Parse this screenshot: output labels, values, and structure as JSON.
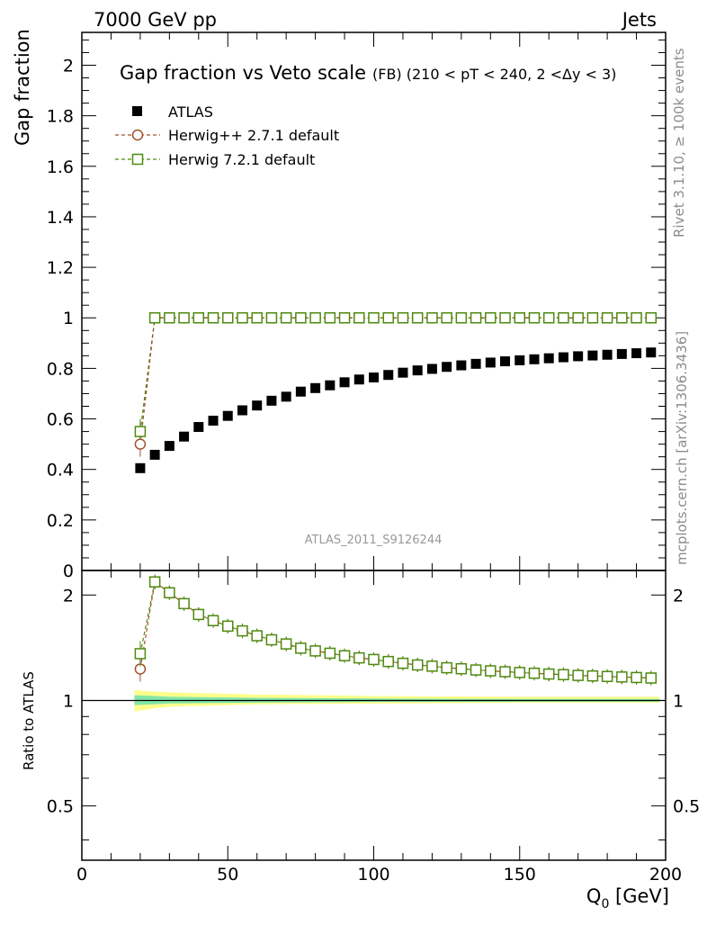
{
  "header": {
    "left": "7000 GeV pp",
    "right": "Jets"
  },
  "side_labels": {
    "rivet": "Rivet 3.1.10, ≥ 100k events",
    "mcplots": "mcplots.cern.ch [arXiv:1306.3436]"
  },
  "chart_data": [
    {
      "type": "scatter",
      "panel": "main",
      "title": "Gap fraction vs Veto scale",
      "subtitle": "(FB) (210 < pT < 240, 2 <Δy < 3)",
      "ylabel": "Gap fraction",
      "xlabel": "",
      "xlim": [
        0,
        200
      ],
      "ylim": [
        0,
        2.13
      ],
      "yticks": [
        0,
        0.2,
        0.4,
        0.6,
        0.8,
        1,
        1.2,
        1.4,
        1.6,
        1.8,
        2
      ],
      "ytick_labels": [
        "0",
        "0.2",
        "0.4",
        "0.6",
        "0.8",
        "1",
        "1.2",
        "1.4",
        "1.6",
        "1.8",
        "2"
      ],
      "watermark": "ATLAS_2011_S9126244",
      "legend": {
        "position": "top-left"
      },
      "x": [
        20,
        25,
        30,
        35,
        40,
        45,
        50,
        55,
        60,
        65,
        70,
        75,
        80,
        85,
        90,
        95,
        100,
        105,
        110,
        115,
        120,
        125,
        130,
        135,
        140,
        145,
        150,
        155,
        160,
        165,
        170,
        175,
        180,
        185,
        190,
        195
      ],
      "series": [
        {
          "name": "ATLAS",
          "color": "#000000",
          "marker": "square-filled",
          "x": [
            20,
            25,
            30,
            35,
            40,
            45,
            50,
            55,
            60,
            65,
            70,
            75,
            80,
            85,
            90,
            95,
            100,
            105,
            110,
            115,
            120,
            125,
            130,
            135,
            140,
            145,
            150,
            155,
            160,
            165,
            170,
            175,
            180,
            185,
            190,
            195
          ],
          "values": [
            0.405,
            0.458,
            0.493,
            0.53,
            0.568,
            0.593,
            0.612,
            0.634,
            0.653,
            0.672,
            0.688,
            0.708,
            0.722,
            0.733,
            0.745,
            0.756,
            0.764,
            0.774,
            0.783,
            0.792,
            0.798,
            0.806,
            0.812,
            0.818,
            0.823,
            0.828,
            0.832,
            0.836,
            0.84,
            0.844,
            0.848,
            0.851,
            0.854,
            0.857,
            0.86,
            0.863
          ]
        },
        {
          "name": "Herwig++ 2.7.1 default",
          "color": "#a0522d",
          "marker": "circle-open",
          "x": [
            20,
            25,
            30,
            35,
            40,
            45,
            50,
            55,
            60,
            65,
            70,
            75,
            80,
            85,
            90,
            95,
            100,
            105,
            110,
            115,
            120,
            125,
            130,
            135,
            140,
            145,
            150,
            155,
            160,
            165,
            170,
            175,
            180,
            185,
            190,
            195
          ],
          "values": [
            0.5,
            1,
            1,
            1,
            1,
            1,
            1,
            1,
            1,
            1,
            1,
            1,
            1,
            1,
            1,
            1,
            1,
            1,
            1,
            1,
            1,
            1,
            1,
            1,
            1,
            1,
            1,
            1,
            1,
            1,
            1,
            1,
            1,
            1,
            1,
            1
          ]
        },
        {
          "name": "Herwig 7.2.1 default",
          "color": "#4e8a0e",
          "marker": "square-open",
          "x": [
            20,
            25,
            30,
            35,
            40,
            45,
            50,
            55,
            60,
            65,
            70,
            75,
            80,
            85,
            90,
            95,
            100,
            105,
            110,
            115,
            120,
            125,
            130,
            135,
            140,
            145,
            150,
            155,
            160,
            165,
            170,
            175,
            180,
            185,
            190,
            195
          ],
          "values": [
            0.55,
            1,
            1,
            1,
            1,
            1,
            1,
            1,
            1,
            1,
            1,
            1,
            1,
            1,
            1,
            1,
            1,
            1,
            1,
            1,
            1,
            1,
            1,
            1,
            1,
            1,
            1,
            1,
            1,
            1,
            1,
            1,
            1,
            1,
            1,
            1
          ]
        }
      ]
    },
    {
      "type": "scatter",
      "panel": "ratio",
      "ylabel": "Ratio to ATLAS",
      "xlabel": "Q_0 [GeV]",
      "xlabel_main": "Q",
      "xlabel_sub": "0",
      "xlabel_unit": " [GeV]",
      "xlim": [
        0,
        200
      ],
      "ylim": [
        0.35,
        2.35
      ],
      "yscale": "log",
      "xticks": [
        0,
        50,
        100,
        150,
        200
      ],
      "xtick_labels": [
        "0",
        "50",
        "100",
        "150",
        "200"
      ],
      "yticks": [
        0.5,
        1,
        2
      ],
      "ytick_labels": [
        "0.5",
        "1",
        "2"
      ],
      "band_x": [
        18,
        25,
        30,
        40,
        60,
        100,
        150,
        198
      ],
      "band_yellow_lo": [
        0.93,
        0.95,
        0.96,
        0.965,
        0.975,
        0.98,
        0.985,
        0.985
      ],
      "band_yellow_hi": [
        1.07,
        1.06,
        1.055,
        1.05,
        1.04,
        1.03,
        1.025,
        1.025
      ],
      "band_green_lo": [
        0.97,
        0.975,
        0.98,
        0.982,
        0.986,
        0.99,
        0.992,
        0.992
      ],
      "band_green_hi": [
        1.035,
        1.03,
        1.025,
        1.022,
        1.018,
        1.013,
        1.01,
        1.01
      ],
      "series": [
        {
          "name": "Herwig++ 2.7.1 default",
          "color": "#a0522d",
          "marker": "circle-open",
          "x": [
            20,
            25,
            30,
            35,
            40,
            45,
            50,
            55,
            60,
            65,
            70,
            75,
            80,
            85,
            90,
            95,
            100,
            105,
            110,
            115,
            120,
            125,
            130,
            135,
            140,
            145,
            150,
            155,
            160,
            165,
            170,
            175,
            180,
            185,
            190,
            195
          ],
          "values": [
            1.23,
            2.18,
            2.03,
            1.89,
            1.76,
            1.69,
            1.63,
            1.58,
            1.53,
            1.49,
            1.45,
            1.41,
            1.385,
            1.364,
            1.342,
            1.323,
            1.309,
            1.292,
            1.277,
            1.263,
            1.253,
            1.24,
            1.232,
            1.222,
            1.215,
            1.208,
            1.202,
            1.196,
            1.19,
            1.185,
            1.179,
            1.175,
            1.171,
            1.167,
            1.163,
            1.159
          ]
        },
        {
          "name": "Herwig 7.2.1 default",
          "color": "#4e8a0e",
          "marker": "square-open",
          "x": [
            20,
            25,
            30,
            35,
            40,
            45,
            50,
            55,
            60,
            65,
            70,
            75,
            80,
            85,
            90,
            95,
            100,
            105,
            110,
            115,
            120,
            125,
            130,
            135,
            140,
            145,
            150,
            155,
            160,
            165,
            170,
            175,
            180,
            185,
            190,
            195
          ],
          "values": [
            1.36,
            2.18,
            2.03,
            1.89,
            1.76,
            1.69,
            1.63,
            1.58,
            1.53,
            1.49,
            1.45,
            1.41,
            1.385,
            1.364,
            1.342,
            1.323,
            1.309,
            1.292,
            1.277,
            1.263,
            1.253,
            1.24,
            1.232,
            1.222,
            1.215,
            1.208,
            1.202,
            1.196,
            1.19,
            1.185,
            1.179,
            1.175,
            1.171,
            1.167,
            1.163,
            1.159
          ]
        }
      ]
    }
  ]
}
